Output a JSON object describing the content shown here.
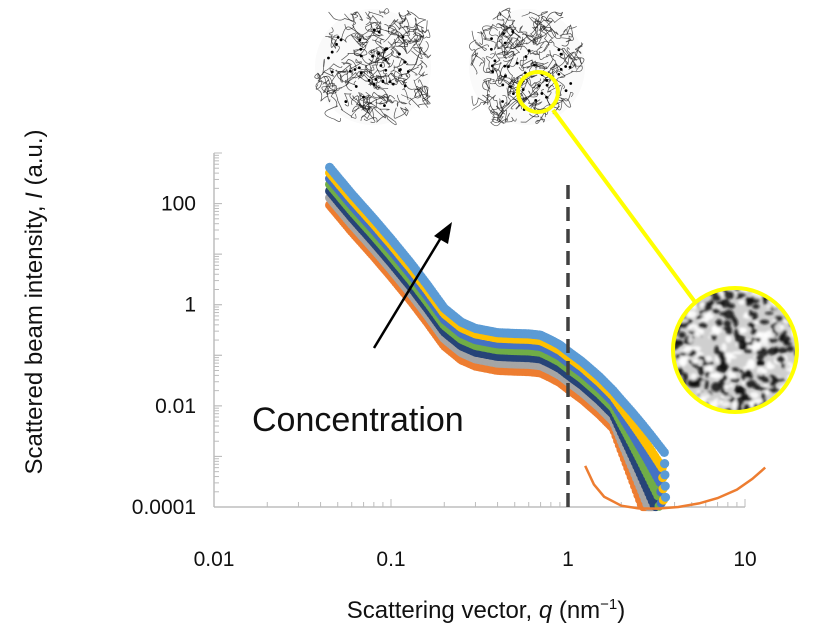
{
  "chart_data": {
    "type": "scatter",
    "x_scale": "log",
    "y_scale": "log",
    "xlim": [
      0.01,
      10
    ],
    "ylim": [
      0.0001,
      1000
    ],
    "x_ticks": [
      "0.01",
      "0.1",
      "1",
      "10"
    ],
    "y_ticks": [
      "0.0001",
      "0.01",
      "1",
      "100"
    ],
    "xlabel_parts": [
      "Scattering vector, ",
      "q",
      " (nm",
      "−1",
      ")"
    ],
    "ylabel_parts": [
      "Scattered  beam intensity, ",
      "I",
      " (a.u.)"
    ],
    "annotation": "Concentration",
    "reference_line_x": 1,
    "grid": false,
    "legend": "none",
    "colors": [
      "#5b9bd5",
      "#ffc000",
      "#4472c4",
      "#70ad47",
      "#264478",
      "#a5a5a5",
      "#ed7d31"
    ],
    "base_curve": {
      "q": [
        0.045,
        0.06,
        0.08,
        0.1,
        0.13,
        0.16,
        0.2,
        0.25,
        0.3,
        0.4,
        0.5,
        0.6,
        0.7,
        0.8,
        0.9,
        1.0,
        1.2,
        1.5,
        1.8,
        2.0,
        2.3,
        2.6,
        2.9,
        3.2,
        3.5
      ],
      "intensity": [
        520,
        155,
        50,
        20,
        6.5,
        2.5,
        0.85,
        0.45,
        0.34,
        0.28,
        0.27,
        0.265,
        0.25,
        0.2,
        0.16,
        0.12,
        0.075,
        0.038,
        0.02,
        0.013,
        0.0075,
        0.0045,
        0.0028,
        0.0018,
        0.0012
      ]
    },
    "series_offsets": [
      1.0,
      0.78,
      0.6,
      0.46,
      0.34,
      0.25,
      0.18
    ],
    "fit_curve": {
      "q": [
        1.25,
        1.4,
        1.6,
        2.0,
        2.5,
        3.2,
        4.2,
        5.5,
        7.0,
        9.0,
        11.0,
        13.0
      ],
      "intensity": [
        0.00065,
        0.00028,
        0.00016,
        0.000106,
        9.4e-05,
        9.3e-05,
        0.0001,
        0.000118,
        0.00015,
        0.00022,
        0.00036,
        0.0006
      ]
    }
  }
}
